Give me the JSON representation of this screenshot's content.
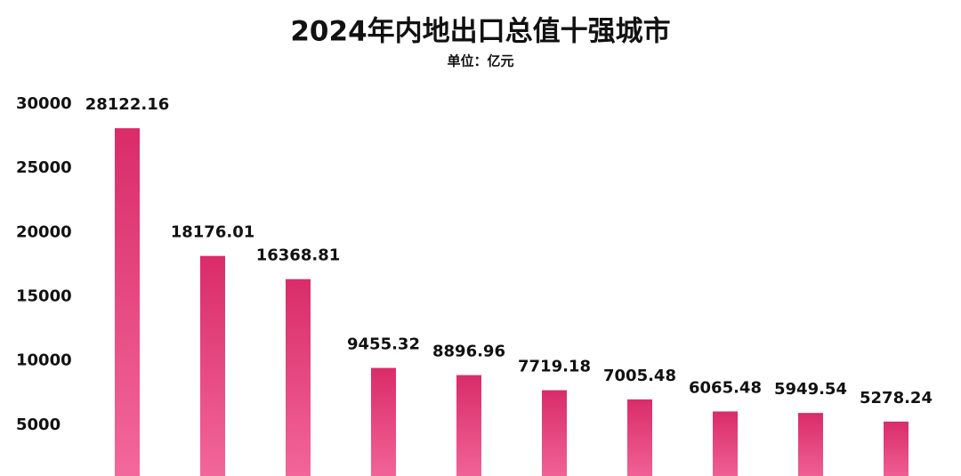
{
  "chart_data": {
    "type": "bar",
    "title": "2024年内地出口总值十强城市",
    "subtitle": "单位：亿元",
    "categories": [
      null,
      null,
      null,
      null,
      null,
      null,
      null,
      null,
      null,
      null
    ],
    "values": [
      28122.16,
      18176.01,
      16368.81,
      9455.32,
      8896.96,
      7719.18,
      7005.48,
      6065.48,
      5949.54,
      5278.24
    ],
    "color": "#e0306e",
    "ylim": [
      0,
      30000
    ],
    "yticks": [
      5000,
      10000,
      15000,
      20000,
      25000,
      30000
    ],
    "grid": false
  }
}
